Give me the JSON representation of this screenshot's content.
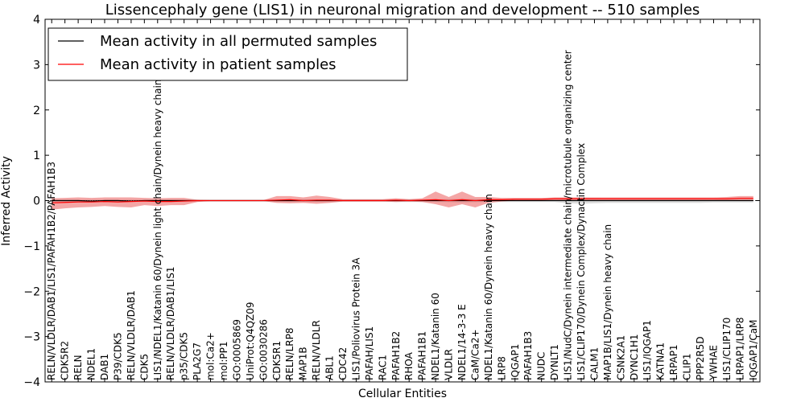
{
  "chart_data": {
    "type": "line",
    "title": "Lissencephaly gene (LIS1) in neuronal migration and development -- 510 samples",
    "xlabel": "Cellular Entities",
    "ylabel": "Inferred Activity",
    "ylim": [
      -4,
      4
    ],
    "yticks": [
      -4,
      -3,
      -2,
      -1,
      0,
      1,
      2,
      3,
      4
    ],
    "grid": false,
    "legend_position": "top-left",
    "categories": [
      "RELN/VLDLR/DAB1/LIS1/PAFAH1B2/PAFAH1B3",
      "CDK5R2",
      "RELN",
      "NDEL1",
      "DAB1",
      "P39/CDK5",
      "RELN/VLDLR/DAB1",
      "CDK5",
      "LIS1/NDEL1/Katanin 60/Dynein light chain/Dynein heavy chain",
      "RELN/VLDLR/DAB1/LIS1",
      "p35/CDK5",
      "PLA2G7",
      "mol:Ca2+",
      "mol:PP1",
      "GO:0005869",
      "UniProt:Q4QZ09",
      "GO:0030286",
      "CDK5R1",
      "RELN/LRP8",
      "MAP1B",
      "RELN/VLDLR",
      "ABL1",
      "CDC42",
      "LIS1/Poliovirus Protein 3A",
      "PAFAH/LIS1",
      "RAC1",
      "PAFAH1B2",
      "RHOA",
      "PAFAH1B1",
      "NDEL1/Katanin 60",
      "VLDLR",
      "NDEL1/14-3-3 E",
      "CaM/Ca2+",
      "NDEL1/Katanin 60/Dynein heavy chain",
      "LRP8",
      "IQGAP1",
      "PAFAH1B3",
      "NUDC",
      "DYNLT1",
      "LIS1/NudC/Dynein intermediate chain/microtubule organizing center",
      "LIS1/CLIP170/Dynein Complex/Dynactin Complex",
      "CALM1",
      "MAP1B/LIS1/Dynein heavy chain",
      "CSNK2A1",
      "DYNC1H1",
      "LIS1/IQGAP1",
      "KATNA1",
      "LRPAP1",
      "CLIP1",
      "PPP2R5D",
      "YWHAE",
      "LIS1/CLIP170",
      "LRPAP1/LRP8",
      "IQGAP1/CaM"
    ],
    "series": [
      {
        "name": "Mean activity in all permuted samples",
        "color": "#000000",
        "values": [
          0.0,
          0.0,
          0.0,
          -0.01,
          0.0,
          0.0,
          -0.01,
          0.0,
          0.0,
          0.0,
          0.0,
          0.0,
          0.0,
          0.0,
          0.0,
          0.0,
          0.0,
          0.0,
          0.0,
          0.0,
          0.0,
          0.0,
          0.0,
          0.0,
          0.0,
          0.0,
          0.0,
          0.0,
          0.0,
          0.0,
          0.0,
          0.0,
          0.0,
          0.0,
          0.0,
          0.0,
          0.0,
          0.0,
          0.0,
          0.0,
          0.0,
          0.0,
          0.0,
          0.0,
          0.0,
          0.0,
          0.0,
          0.0,
          0.0,
          0.0,
          0.0,
          0.0,
          0.0,
          0.0
        ],
        "band_lower": [
          -0.03,
          -0.03,
          -0.03,
          -0.03,
          -0.03,
          -0.03,
          -0.03,
          -0.03,
          -0.03,
          -0.03,
          -0.03,
          -0.02,
          -0.02,
          -0.02,
          -0.02,
          -0.02,
          -0.02,
          -0.03,
          -0.03,
          -0.03,
          -0.03,
          -0.03,
          -0.02,
          -0.02,
          -0.02,
          -0.02,
          -0.03,
          -0.03,
          -0.03,
          -0.03,
          -0.04,
          -0.05,
          -0.04,
          -0.03,
          -0.03,
          -0.03,
          -0.03,
          -0.03,
          -0.03,
          -0.06,
          -0.07,
          -0.06,
          -0.05,
          -0.05,
          -0.05,
          -0.05,
          -0.05,
          -0.05,
          -0.05,
          -0.05,
          -0.04,
          -0.04,
          -0.04,
          -0.04
        ],
        "band_upper": [
          0.03,
          0.03,
          0.03,
          0.03,
          0.03,
          0.03,
          0.03,
          0.03,
          0.03,
          0.03,
          0.03,
          0.02,
          0.02,
          0.02,
          0.02,
          0.02,
          0.02,
          0.03,
          0.03,
          0.03,
          0.03,
          0.03,
          0.02,
          0.02,
          0.02,
          0.02,
          0.03,
          0.03,
          0.03,
          0.03,
          0.04,
          0.05,
          0.04,
          0.03,
          0.03,
          0.03,
          0.03,
          0.03,
          0.03,
          0.06,
          0.07,
          0.06,
          0.05,
          0.05,
          0.05,
          0.05,
          0.05,
          0.05,
          0.05,
          0.05,
          0.04,
          0.04,
          0.04,
          0.04
        ],
        "band_color": "#c8c8c8"
      },
      {
        "name": "Mean activity in patient samples",
        "color": "#ff0000",
        "values": [
          -0.05,
          -0.04,
          -0.03,
          -0.03,
          -0.02,
          -0.03,
          -0.02,
          -0.01,
          -0.02,
          -0.02,
          -0.01,
          0.0,
          0.0,
          0.0,
          0.0,
          0.0,
          0.0,
          0.01,
          0.02,
          0.0,
          0.01,
          0.01,
          0.0,
          0.0,
          0.0,
          0.0,
          0.01,
          0.0,
          0.01,
          0.02,
          0.0,
          0.02,
          0.0,
          0.02,
          0.02,
          0.03,
          0.03,
          0.03,
          0.04,
          0.04,
          0.04,
          0.04,
          0.04,
          0.04,
          0.04,
          0.04,
          0.04,
          0.04,
          0.04,
          0.04,
          0.04,
          0.04,
          0.05,
          0.05
        ],
        "band_lower": [
          -0.2,
          -0.17,
          -0.15,
          -0.14,
          -0.12,
          -0.14,
          -0.15,
          -0.1,
          -0.12,
          -0.1,
          -0.1,
          -0.03,
          -0.01,
          -0.01,
          -0.01,
          -0.01,
          -0.01,
          -0.05,
          -0.06,
          -0.05,
          -0.07,
          -0.05,
          -0.02,
          -0.02,
          -0.02,
          -0.02,
          -0.03,
          -0.02,
          -0.03,
          -0.08,
          -0.15,
          -0.08,
          -0.15,
          -0.05,
          -0.02,
          0.0,
          0.0,
          0.0,
          0.01,
          0.01,
          0.01,
          0.01,
          0.01,
          0.01,
          0.01,
          0.01,
          0.01,
          0.01,
          0.01,
          0.01,
          0.01,
          0.0,
          0.0,
          0.0
        ],
        "band_upper": [
          0.05,
          0.06,
          0.07,
          0.06,
          0.07,
          0.07,
          0.07,
          0.06,
          0.05,
          0.06,
          0.06,
          0.02,
          0.01,
          0.01,
          0.01,
          0.01,
          0.01,
          0.1,
          0.1,
          0.07,
          0.11,
          0.08,
          0.03,
          0.03,
          0.03,
          0.03,
          0.05,
          0.03,
          0.05,
          0.2,
          0.08,
          0.2,
          0.08,
          0.08,
          0.06,
          0.06,
          0.06,
          0.06,
          0.07,
          0.07,
          0.07,
          0.07,
          0.07,
          0.07,
          0.07,
          0.07,
          0.07,
          0.07,
          0.07,
          0.07,
          0.07,
          0.08,
          0.1,
          0.1
        ],
        "band_color": "#f08080"
      }
    ]
  }
}
